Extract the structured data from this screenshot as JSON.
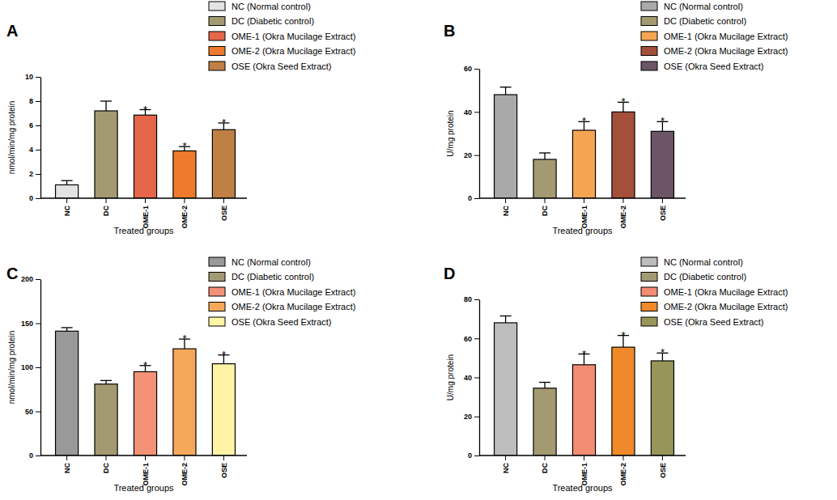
{
  "chart_data": [
    {
      "type": "bar",
      "title": "A",
      "x_label": "Treated groups",
      "y_label": "nmol/min/mg protein",
      "categories": [
        "NC",
        "DC",
        "OME-1",
        "OME-2",
        "OSE"
      ],
      "values": [
        1.1,
        7.2,
        6.85,
        3.9,
        5.65
      ],
      "errors": [
        0.35,
        0.8,
        0.45,
        0.35,
        0.55
      ],
      "annotations": [
        null,
        null,
        "*",
        "*",
        "*"
      ],
      "colors": [
        "#e3e3e3",
        "#a39a72",
        "#e5664a",
        "#ee7a2e",
        "#c08045"
      ],
      "legend_labels": [
        "NC (Normal control)",
        "DC (Diabetic control)",
        "OME-1 (Okra Mucilage Extract)",
        "OME-2 (Okra Mucilage Extract)",
        "OSE (Okra Seed Extract)"
      ],
      "legend": "top-right",
      "ylim": [
        0,
        10
      ],
      "yticks": [
        0,
        2,
        4,
        6,
        8,
        10
      ]
    },
    {
      "type": "bar",
      "title": "B",
      "x_label": "Treated groups",
      "y_label": "U/mg protein",
      "categories": [
        "NC",
        "DC",
        "OME-1",
        "OME-2",
        "OSE"
      ],
      "values": [
        48,
        18,
        31.5,
        40,
        31
      ],
      "errors": [
        3.5,
        3,
        4,
        4.5,
        4.5
      ],
      "annotations": [
        null,
        null,
        "*",
        "*",
        "*"
      ],
      "colors": [
        "#a9a9a9",
        "#a39a72",
        "#f5a551",
        "#a34f3a",
        "#6b5566"
      ],
      "legend_labels": [
        "NC (Normal control)",
        "DC (Diabetic control)",
        "OME-1 (Okra Mucilage Extract)",
        "OME-2 (Okra Mucilage Extract)",
        "OSE (Okra Seed Extract)"
      ],
      "legend": "top-right",
      "ylim": [
        0,
        60
      ],
      "yticks": [
        0,
        20,
        40,
        60
      ]
    },
    {
      "type": "bar",
      "title": "C",
      "x_label": "Treated groups",
      "y_label": "nmol/min/mg protein",
      "categories": [
        "NC",
        "DC",
        "OME-1",
        "OME-2",
        "OSE"
      ],
      "values": [
        141,
        81,
        95,
        121,
        104
      ],
      "errors": [
        4,
        4,
        7,
        11,
        10
      ],
      "annotations": [
        null,
        null,
        "*",
        "*",
        "*"
      ],
      "colors": [
        "#999999",
        "#a39a72",
        "#f49278",
        "#f5a85a",
        "#fff3a6"
      ],
      "legend_labels": [
        "NC (Normal control)",
        "DC (Diabetic control)",
        "OME-1 (Okra Mucilage Extract)",
        "OME-2 (Okra Mucilage Extract)",
        "OSE (Okra Seed Extract)"
      ],
      "legend": "top-right",
      "ylim": [
        0,
        200
      ],
      "yticks": [
        0,
        50,
        100,
        150,
        200
      ]
    },
    {
      "type": "bar",
      "title": "D",
      "x_label": "Treated groups",
      "y_label": "U/mg protein",
      "categories": [
        "NC",
        "DC",
        "OME-1",
        "OME-2",
        "OSE"
      ],
      "values": [
        68,
        34.5,
        46.5,
        55.5,
        48.5
      ],
      "errors": [
        3.5,
        3,
        5.5,
        6,
        4
      ],
      "annotations": [
        null,
        null,
        "*",
        "*",
        "*"
      ],
      "colors": [
        "#bdbdbd",
        "#a39a72",
        "#f28c73",
        "#f0892a",
        "#98955a"
      ],
      "legend_labels": [
        "NC (Normal control)",
        "DC (Diabetic control)",
        "OME-1 (Okra Mucilage Extract)",
        "OME-2 (Okra Mucilage Extract)",
        "OSE (Okra Seed Extract)"
      ],
      "legend": "top-right",
      "ylim": [
        0,
        80
      ],
      "yticks": [
        0,
        20,
        40,
        60,
        80
      ]
    }
  ]
}
